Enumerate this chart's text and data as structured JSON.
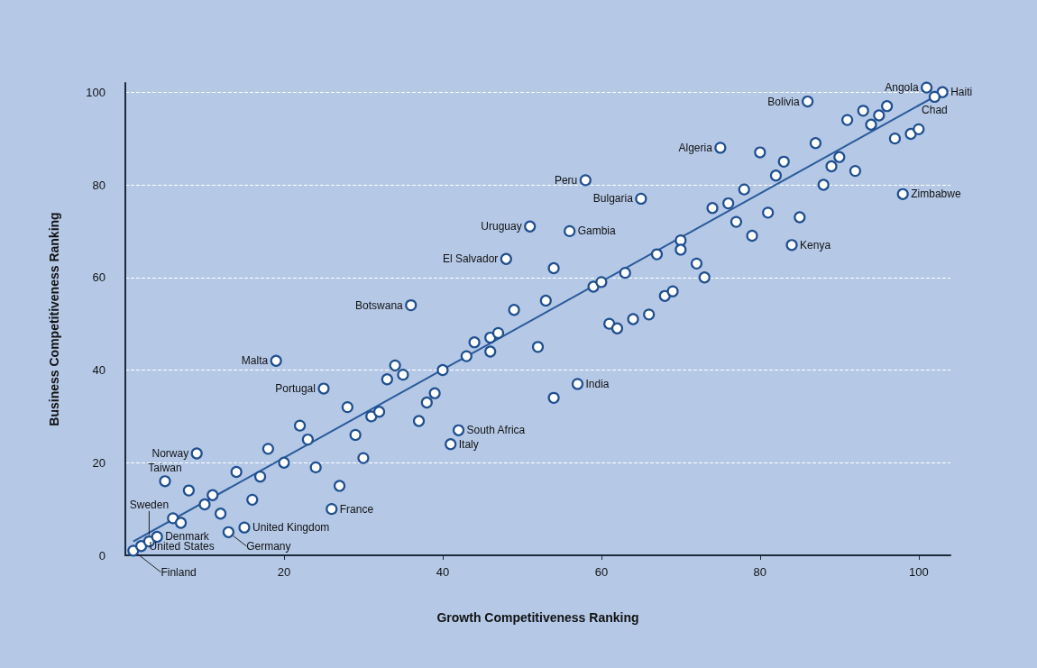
{
  "chart_data": {
    "type": "scatter",
    "xlabel": "Growth Competitiveness Ranking",
    "ylabel": "Business Competitiveness Ranking",
    "xlim": [
      0,
      104
    ],
    "ylim": [
      0,
      102
    ],
    "xticks": [
      20,
      40,
      60,
      80,
      100
    ],
    "yticks": [
      0,
      20,
      40,
      60,
      80,
      100
    ],
    "grid": "y",
    "marker": "circle",
    "series": [
      {
        "color": "#1f4f8f",
        "x": [
          1,
          2,
          3,
          4,
          6,
          7,
          5,
          8,
          9,
          10,
          11,
          12,
          13,
          14,
          15,
          16,
          17,
          18,
          19,
          20,
          22,
          23,
          24,
          25,
          26,
          27,
          28,
          29,
          30,
          31,
          32,
          33,
          34,
          35,
          36,
          37,
          38,
          39,
          40,
          42,
          41,
          43,
          44,
          46,
          46,
          47,
          49,
          53,
          52,
          54,
          57,
          61,
          62,
          64,
          66,
          58,
          65,
          51,
          56,
          48,
          54,
          59,
          60,
          63,
          67,
          70,
          70,
          68,
          69,
          75,
          86,
          101,
          103,
          102,
          72,
          73,
          74,
          76,
          77,
          78,
          79,
          80,
          81,
          82,
          83,
          85,
          84,
          87,
          88,
          89,
          90,
          92,
          91,
          93,
          94,
          95,
          96,
          97,
          99,
          100,
          98
        ],
        "values": [
          1,
          2,
          3,
          4,
          8,
          7,
          16,
          14,
          22,
          11,
          13,
          9,
          5,
          18,
          6,
          12,
          17,
          23,
          42,
          20,
          28,
          25,
          19,
          36,
          10,
          15,
          32,
          26,
          21,
          30,
          31,
          38,
          41,
          39,
          54,
          29,
          33,
          35,
          40,
          27,
          24,
          43,
          46,
          44,
          47,
          48,
          53,
          55,
          45,
          34,
          37,
          50,
          49,
          51,
          52,
          81,
          77,
          71,
          70,
          64,
          62,
          58,
          59,
          61,
          65,
          68,
          66,
          56,
          57,
          88,
          98,
          101,
          100,
          99,
          63,
          60,
          75,
          76,
          72,
          79,
          69,
          87,
          74,
          82,
          85,
          73,
          67,
          89,
          80,
          84,
          86,
          83,
          94,
          96,
          93,
          95,
          97,
          90,
          91,
          92,
          78
        ]
      },
      {
        "type": "line",
        "color": "#2a5a9a",
        "marker": "none",
        "x": [
          1,
          103
        ],
        "values": [
          3,
          100
        ]
      }
    ],
    "annotations": [
      {
        "text": "Finland",
        "x": 1,
        "y": 1
      },
      {
        "text": "United States",
        "x": 2,
        "y": 2
      },
      {
        "text": "Sweden",
        "x": 3,
        "y": 3
      },
      {
        "text": "Denmark",
        "x": 4,
        "y": 4
      },
      {
        "text": "Taiwan",
        "x": 5,
        "y": 16
      },
      {
        "text": "Norway",
        "x": 9,
        "y": 22
      },
      {
        "text": "Germany",
        "x": 13,
        "y": 5
      },
      {
        "text": "United Kingdom",
        "x": 15,
        "y": 6
      },
      {
        "text": "Malta",
        "x": 19,
        "y": 42
      },
      {
        "text": "Portugal",
        "x": 25,
        "y": 36
      },
      {
        "text": "France",
        "x": 26,
        "y": 10
      },
      {
        "text": "Botswana",
        "x": 36,
        "y": 54
      },
      {
        "text": "South Africa",
        "x": 42,
        "y": 27
      },
      {
        "text": "Italy",
        "x": 41,
        "y": 24
      },
      {
        "text": "India",
        "x": 57,
        "y": 37
      },
      {
        "text": "El Salvador",
        "x": 48,
        "y": 64
      },
      {
        "text": "Uruguay",
        "x": 51,
        "y": 71
      },
      {
        "text": "Gambia",
        "x": 56,
        "y": 70
      },
      {
        "text": "Peru",
        "x": 58,
        "y": 81
      },
      {
        "text": "Bulgaria",
        "x": 65,
        "y": 77
      },
      {
        "text": "Algeria",
        "x": 75,
        "y": 88
      },
      {
        "text": "Bolivia",
        "x": 86,
        "y": 98
      },
      {
        "text": "Kenya",
        "x": 84,
        "y": 67
      },
      {
        "text": "Zimbabwe",
        "x": 98,
        "y": 78
      },
      {
        "text": "Angola",
        "x": 101,
        "y": 101
      },
      {
        "text": "Haiti",
        "x": 103,
        "y": 100
      },
      {
        "text": "Chad",
        "x": 102,
        "y": 99
      }
    ]
  }
}
